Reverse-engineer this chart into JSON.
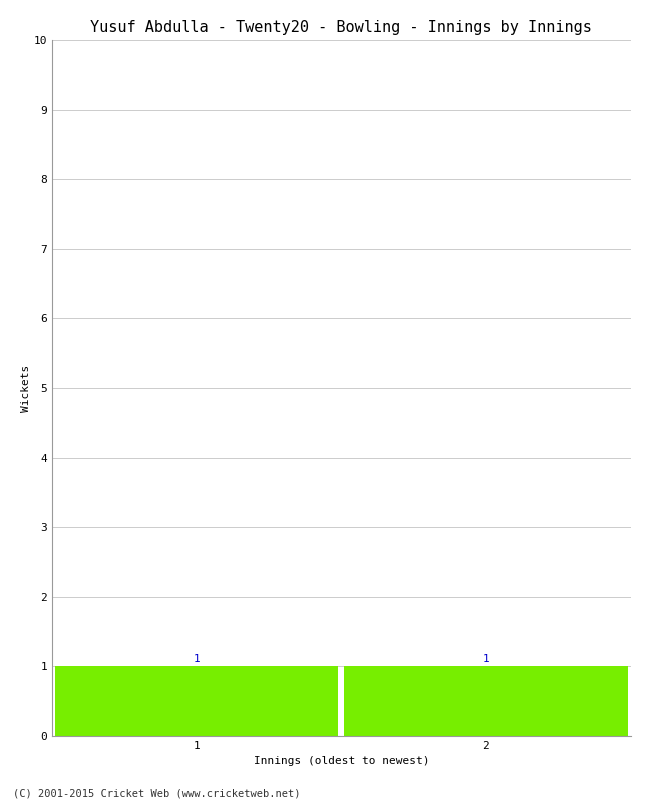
{
  "title": "Yusuf Abdulla - Twenty20 - Bowling - Innings by Innings",
  "xlabel": "Innings (oldest to newest)",
  "ylabel": "Wickets",
  "bar_values": [
    1,
    1
  ],
  "bar_labels": [
    "1",
    "1"
  ],
  "bar_positions": [
    1,
    2
  ],
  "bar_color": "#77ee00",
  "bar_width": 0.98,
  "ylim": [
    0,
    10
  ],
  "yticks": [
    0,
    1,
    2,
    3,
    4,
    5,
    6,
    7,
    8,
    9,
    10
  ],
  "xticks": [
    1,
    2
  ],
  "xlim": [
    0.5,
    2.5
  ],
  "background_color": "#ffffff",
  "grid_color": "#cccccc",
  "title_fontsize": 11,
  "label_fontsize": 8,
  "tick_fontsize": 8,
  "annotation_fontsize": 8,
  "annotation_color": "#0000cc",
  "footer": "(C) 2001-2015 Cricket Web (www.cricketweb.net)",
  "footer_fontsize": 7.5
}
